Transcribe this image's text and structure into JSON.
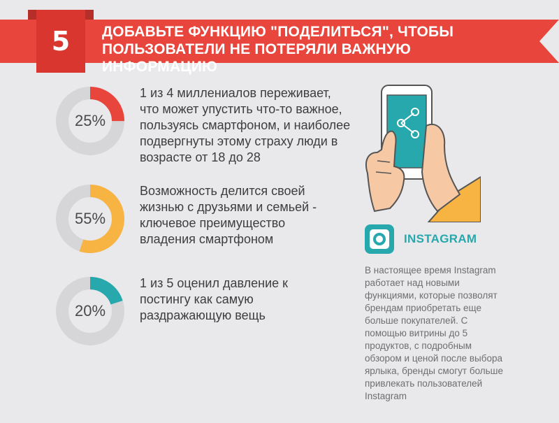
{
  "banner": {
    "number": "5",
    "title": "Добавьте функцию \"поделиться\", чтобы\nпользователи не потеряли важную информацию",
    "color": "#e8453c",
    "badge_color": "#d9362f"
  },
  "stats": [
    {
      "label": "25%",
      "value": 25,
      "color": "#e8453c",
      "text": "1 из 4 миллениалов переживает,\nчто может упустить что-то важное,\nпользуясь смартфоном, и наиболее\nподвергнуты этому страху люди в\nвозрасте от 18 до 28"
    },
    {
      "label": "55%",
      "value": 55,
      "color": "#f7b443",
      "text": "Возможность делится своей\nжизнью с друзьями и семьей -\nключевое преимущество\nвладения смартфоном"
    },
    {
      "label": "20%",
      "value": 20,
      "color": "#26a8ad",
      "text": "1 из 5 оценил давление к\nпостингу как самую\nраздражающую вещь"
    }
  ],
  "ring_track_color": "#d6d6d9",
  "illustration": {
    "icon": "hand-holding-phone-share-icon",
    "phone_screen_color": "#26a8ad",
    "sleeve_color": "#f7b443",
    "skin_color": "#f6c8a4"
  },
  "instagram": {
    "icon": "instagram-logo-icon",
    "name": "INSTAGRAM",
    "color": "#26a8ad",
    "description": "В настоящее время Instagram\nработает над новыми\nфункциями, которые позволят\nбрендам приобретать еще\nбольше покупателей. С\nпомощью витрины до 5\nпродуктов, с подробным\nобзором и ценой после выбора\nярлыка, бренды смогут больше\nпривлекать пользователей\nInstagram"
  }
}
